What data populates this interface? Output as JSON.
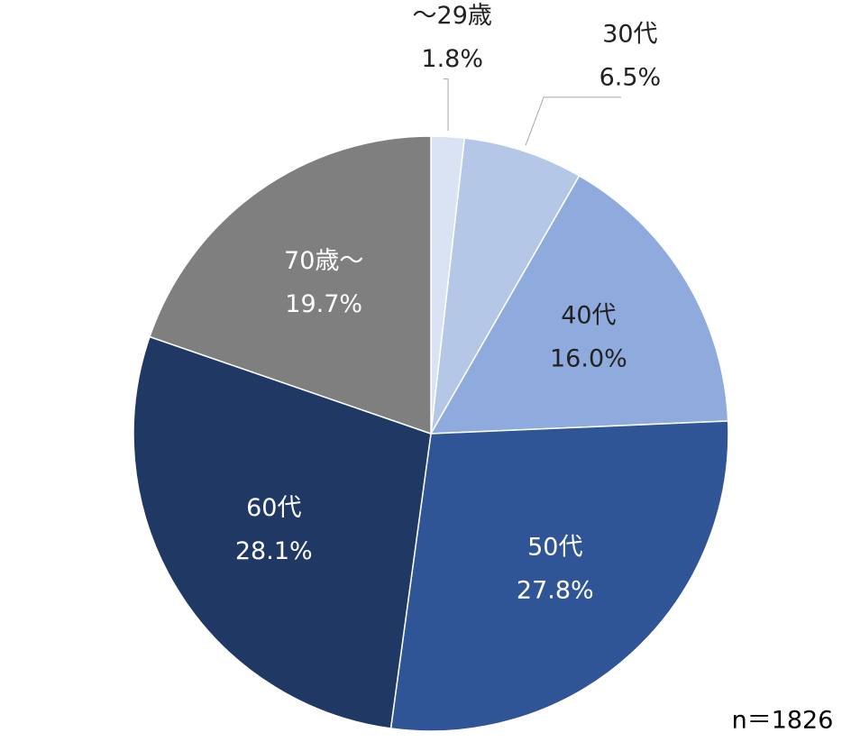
{
  "chart_data": {
    "type": "pie",
    "categories": [
      "～29歳",
      "30代",
      "40代",
      "50代",
      "60代",
      "70歳～"
    ],
    "values": [
      1.8,
      6.5,
      16.0,
      27.8,
      28.1,
      19.7
    ],
    "value_labels": [
      "1.8%",
      "6.5%",
      "16.0%",
      "27.8%",
      "28.1%",
      "19.7%"
    ],
    "colors": [
      "#dae3f3",
      "#b4c7e7",
      "#8faadc",
      "#2f5597",
      "#203864",
      "#7f7f7f"
    ],
    "annotation": "n＝1826"
  }
}
